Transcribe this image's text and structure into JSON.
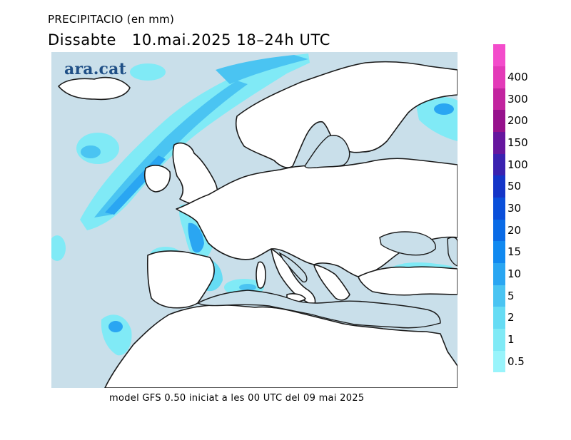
{
  "title": {
    "line1": "PRECIPITACIO (en mm)",
    "line2": "Dissabte   10.mai.2025 18–24h UTC"
  },
  "logo": "ara.cat",
  "footer": "model GFS 0.50 iniciat a les 00 UTC del 09 mai 2025",
  "colors": {
    "sea": "#c9dfea",
    "land": "#ffffff",
    "coast": "#1a1a1a"
  },
  "legend": {
    "unit": "mm",
    "items": [
      {
        "label": "0.5",
        "color": "#99f4fb"
      },
      {
        "label": "1",
        "color": "#80eaf6"
      },
      {
        "label": "2",
        "color": "#66dcf4"
      },
      {
        "label": "5",
        "color": "#4ac4f2"
      },
      {
        "label": "10",
        "color": "#2aa6f2"
      },
      {
        "label": "15",
        "color": "#1189f0"
      },
      {
        "label": "20",
        "color": "#0a6be6"
      },
      {
        "label": "30",
        "color": "#0a4fda"
      },
      {
        "label": "50",
        "color": "#1435c8"
      },
      {
        "label": "100",
        "color": "#3a22b0"
      },
      {
        "label": "150",
        "color": "#66169e"
      },
      {
        "label": "200",
        "color": "#96128c"
      },
      {
        "label": "300",
        "color": "#c2249f"
      },
      {
        "label": "400",
        "color": "#e33ab8"
      },
      {
        "label": "",
        "color": "#f34ccb"
      }
    ]
  }
}
